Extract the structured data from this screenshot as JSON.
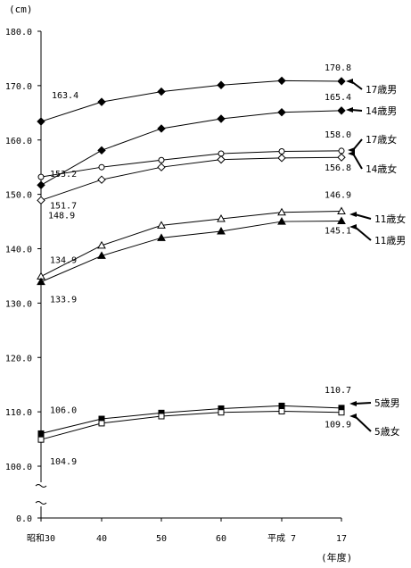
{
  "chart_data": {
    "type": "line",
    "title": "",
    "ylabel": "(cm)",
    "xlabel": "(年度)",
    "categories": [
      "昭和30",
      "40",
      "50",
      "60",
      "平成 7",
      "17"
    ],
    "y_ticks": [
      "180.0",
      "170.0",
      "160.0",
      "150.0",
      "140.0",
      "130.0",
      "120.0",
      "110.0",
      "100.0",
      "0.0"
    ],
    "ylim": [
      100,
      180
    ],
    "axis_break": true,
    "grid": false,
    "series": [
      {
        "name": "17歳男",
        "marker": "filled-diamond",
        "values": [
          163.4,
          167.0,
          168.9,
          170.1,
          170.9,
          170.8
        ],
        "start_label": "163.4",
        "end_label": "170.8",
        "value_labels": [
          "163.4",
          "170.8"
        ]
      },
      {
        "name": "14歳男",
        "marker": "filled-diamond",
        "values": [
          151.7,
          158.1,
          162.1,
          163.9,
          165.1,
          165.4
        ],
        "start_label": "151.7",
        "end_label": "165.4",
        "value_labels": [
          "151.7",
          "165.4"
        ]
      },
      {
        "name": "17歳女",
        "marker": "open-circle",
        "values": [
          153.2,
          155.0,
          156.3,
          157.5,
          157.9,
          158.0
        ],
        "start_label": "153.2",
        "end_label": "158.0",
        "value_labels": [
          "153.2",
          "158.0"
        ]
      },
      {
        "name": "14歳女",
        "marker": "open-diamond",
        "values": [
          148.9,
          152.7,
          155.0,
          156.4,
          156.7,
          156.8
        ],
        "start_label": "148.9",
        "end_label": "156.8",
        "value_labels": [
          "148.9",
          "156.8"
        ]
      },
      {
        "name": "11歳女",
        "marker": "open-triangle",
        "values": [
          134.9,
          140.6,
          144.3,
          145.5,
          146.7,
          146.9
        ],
        "start_label": "134.9",
        "end_label": "146.9",
        "value_labels": [
          "134.9",
          "146.9"
        ]
      },
      {
        "name": "11歳男",
        "marker": "filled-triangle",
        "values": [
          133.9,
          138.7,
          142.0,
          143.2,
          145.0,
          145.1
        ],
        "start_label": "133.9",
        "end_label": "145.1",
        "value_labels": [
          "133.9",
          "145.1"
        ]
      },
      {
        "name": "5歳男",
        "marker": "filled-square",
        "values": [
          106.0,
          108.7,
          109.8,
          110.6,
          111.1,
          110.7
        ],
        "start_label": "106.0",
        "end_label": "110.7",
        "value_labels": [
          "106.0",
          "110.7"
        ]
      },
      {
        "name": "5歳女",
        "marker": "open-square",
        "values": [
          104.9,
          107.9,
          109.2,
          109.9,
          110.1,
          109.9
        ],
        "start_label": "104.9",
        "end_label": "109.9",
        "value_labels": [
          "104.9",
          "109.9"
        ]
      }
    ]
  }
}
